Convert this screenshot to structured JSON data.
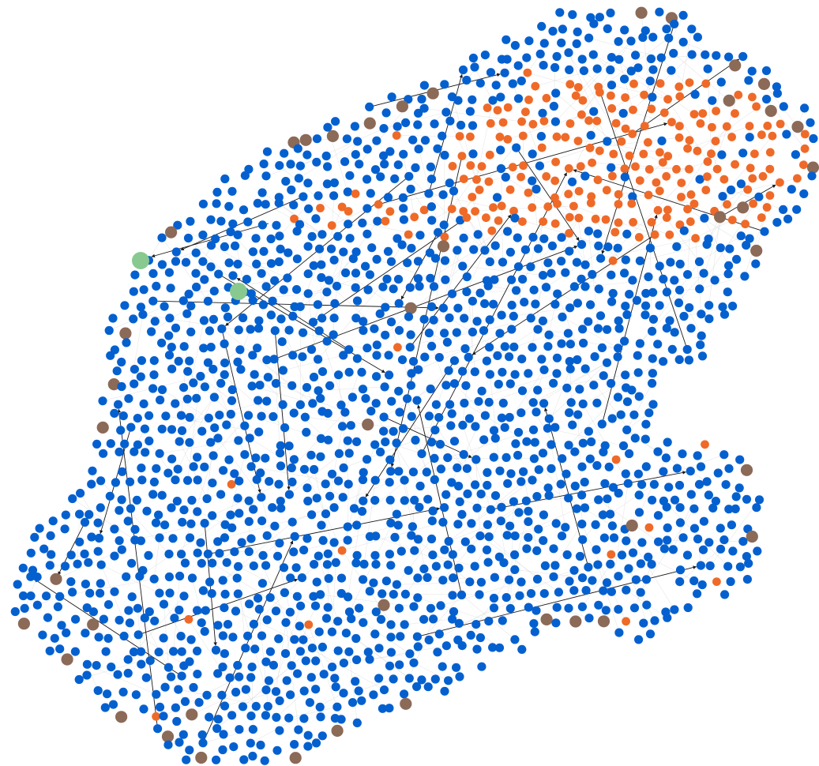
{
  "graph": {
    "type": "network",
    "node_count_approx": 1850,
    "colors": {
      "background": "#ffffff",
      "edge_light": "#d4d4d4",
      "edge_highlight": "#1a1a1a",
      "group_main": "#0560cf",
      "group_orange": "#ef6a28",
      "group_brown": "#8b6a58",
      "group_green": "#88c98f"
    },
    "groups": [
      {
        "id": "main",
        "color": "#0560cf",
        "share": 0.82
      },
      {
        "id": "orange",
        "color": "#ef6a28",
        "share": 0.13
      },
      {
        "id": "brown",
        "color": "#8b6a58",
        "share": 0.05
      },
      {
        "id": "green",
        "color": "#88c98f",
        "share": 0.001
      }
    ],
    "directed_edges": true,
    "labels_visible": false
  }
}
